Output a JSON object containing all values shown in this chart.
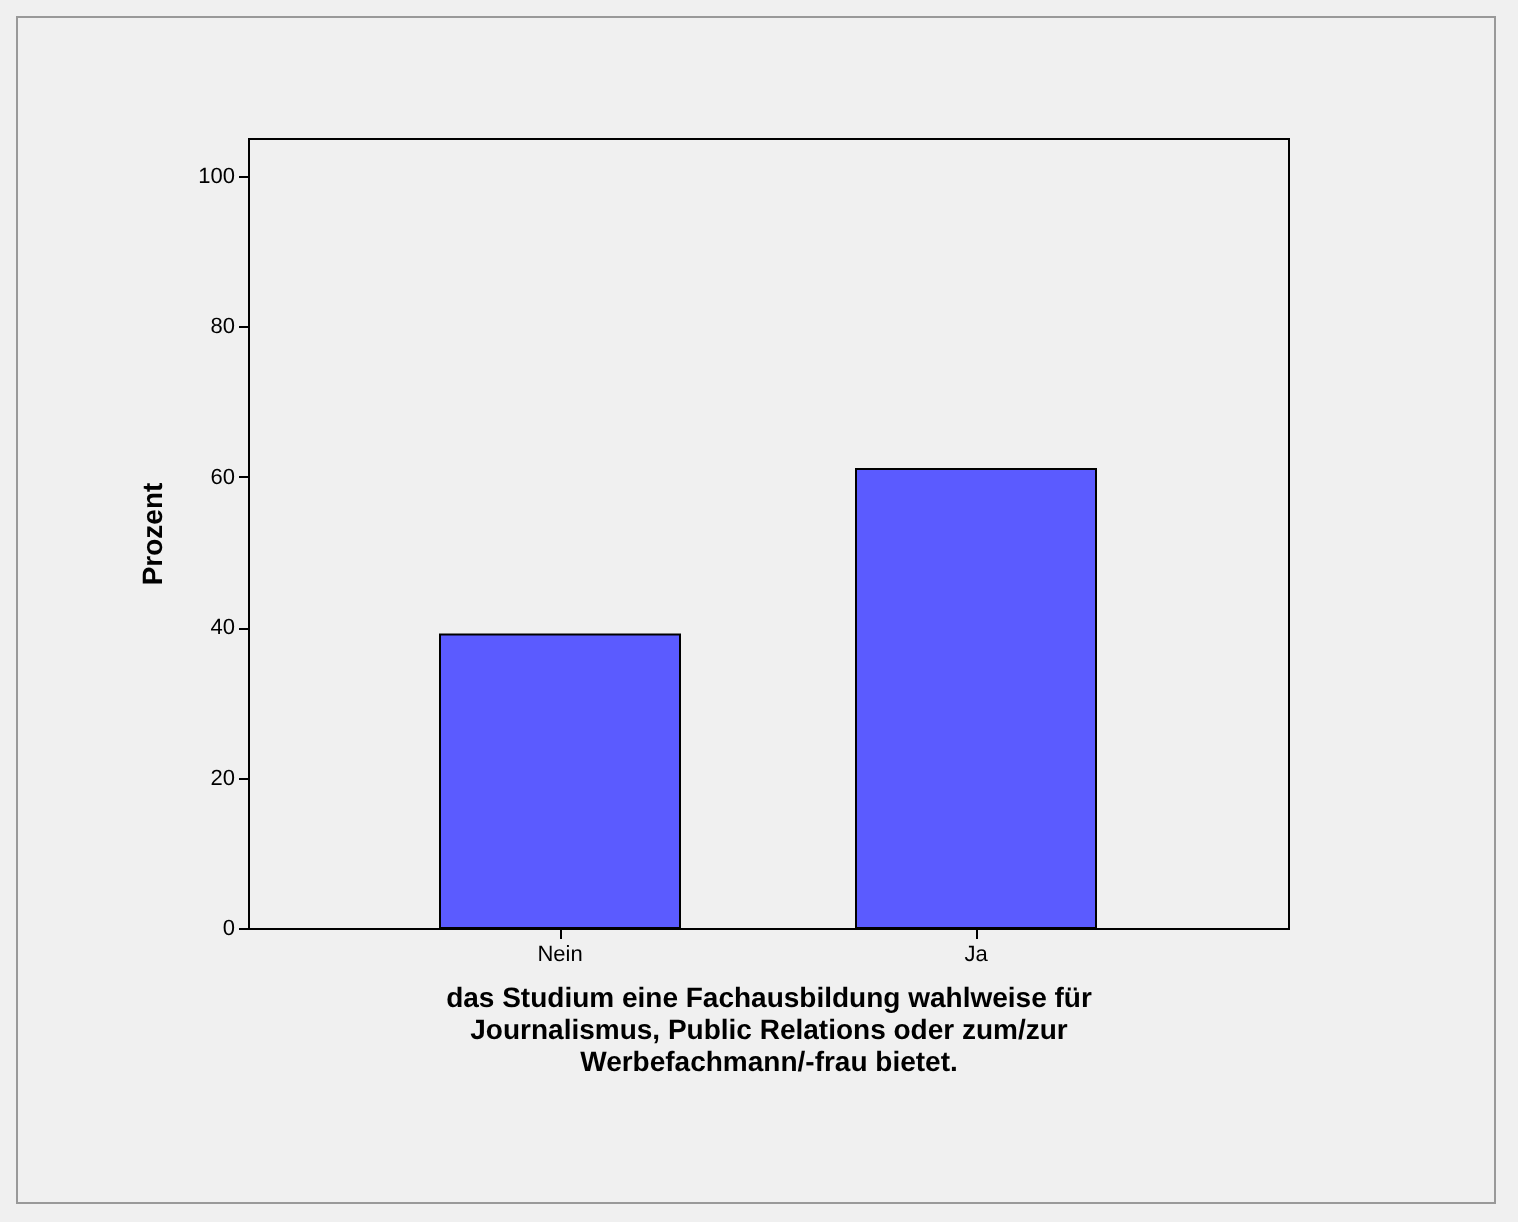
{
  "chart_data": {
    "type": "bar",
    "xlabel": "das Studium eine Fachausbildung wahlweise für Journalismus, Public Relations oder zum/zur Werbefachmann/-frau bietet.",
    "ylabel": "Prozent",
    "categories": [
      "Nein",
      "Ja"
    ],
    "values": [
      39,
      61
    ],
    "color": "#5b5bff",
    "ylim": [
      0,
      105
    ],
    "yticks": [
      0,
      20,
      40,
      60,
      80,
      100
    ],
    "grid": false
  }
}
